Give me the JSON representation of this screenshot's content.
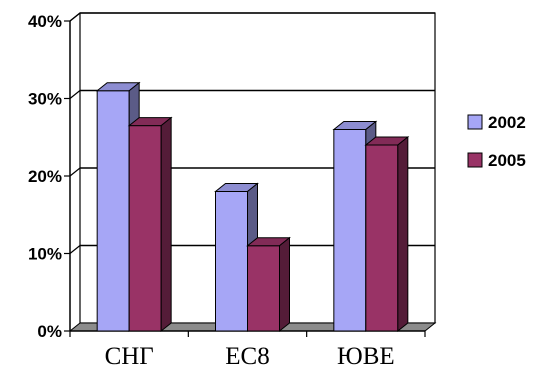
{
  "chart_data": {
    "type": "bar",
    "style": "3d-clustered-column",
    "categories": [
      "СНГ",
      "ЕС8",
      "ЮВЕ"
    ],
    "series": [
      {
        "name": "2002",
        "values": [
          31,
          18,
          26
        ],
        "color": "#a6a6f6"
      },
      {
        "name": "2005",
        "values": [
          26.5,
          11,
          24
        ],
        "color": "#993366"
      }
    ],
    "y_ticks": [
      "0%",
      "10%",
      "20%",
      "30%",
      "40%"
    ],
    "ylim": [
      0,
      40
    ],
    "grid": true,
    "legend_position": "right",
    "title": "",
    "xlabel": "",
    "ylabel": ""
  }
}
